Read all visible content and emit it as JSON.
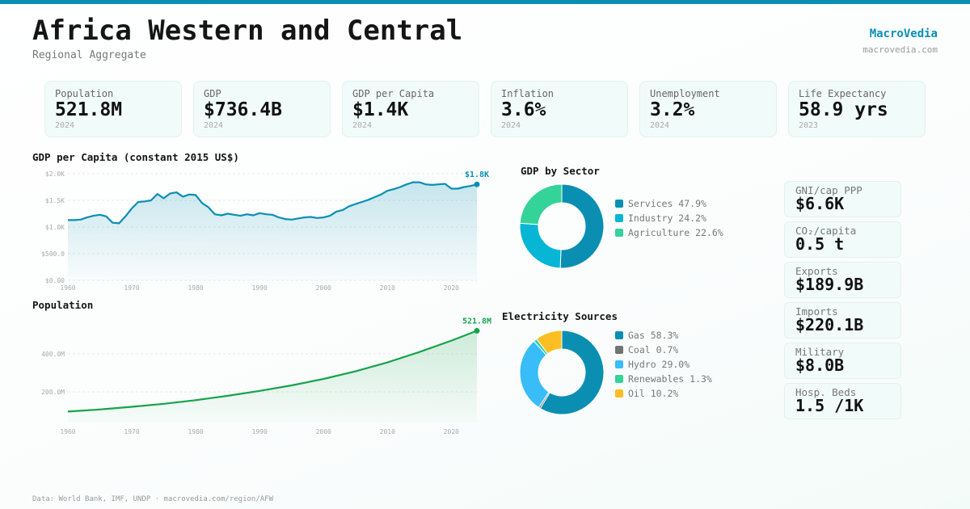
{
  "header": {
    "title": "Africa Western and Central",
    "subtitle": "Regional Aggregate",
    "brand": "MacroVedia",
    "brand_url": "macrovedia.com"
  },
  "colors": {
    "accent": "#0a8fb3",
    "population": "#16a34a"
  },
  "kpis": [
    {
      "label": "Population",
      "value": "521.8M",
      "year": "2024"
    },
    {
      "label": "GDP",
      "value": "$736.4B",
      "year": "2024"
    },
    {
      "label": "GDP per Capita",
      "value": "$1.4K",
      "year": "2024"
    },
    {
      "label": "Inflation",
      "value": "3.6%",
      "year": "2024"
    },
    {
      "label": "Unemployment",
      "value": "3.2%",
      "year": "2024"
    },
    {
      "label": "Life Expectancy",
      "value": "58.9 yrs",
      "year": "2023"
    }
  ],
  "side_stats": [
    {
      "label": "GNI/cap PPP",
      "value": "$6.6K"
    },
    {
      "label": "CO₂/capita",
      "value": "0.5 t"
    },
    {
      "label": "Exports",
      "value": "$189.9B"
    },
    {
      "label": "Imports",
      "value": "$220.1B"
    },
    {
      "label": "Military",
      "value": "$8.0B"
    },
    {
      "label": "Hosp. Beds",
      "value": "1.5 /1K"
    }
  ],
  "chart_data": [
    {
      "type": "area",
      "title": "GDP per Capita (constant 2015 US$)",
      "color": "#0a8fb3",
      "ylim": [
        0,
        2000
      ],
      "yticks": [
        {
          "v": 0,
          "label": "$0.00"
        },
        {
          "v": 500,
          "label": "$500.0"
        },
        {
          "v": 1000,
          "label": "$1.0K"
        },
        {
          "v": 1500,
          "label": "$1.5K"
        },
        {
          "v": 2000,
          "label": "$2.0K"
        }
      ],
      "xticks": [
        1960,
        1970,
        1980,
        1990,
        2000,
        2010,
        2020
      ],
      "grid": true,
      "end_label": "$1.8K",
      "x_start": 1960,
      "values": [
        1130,
        1130,
        1140,
        1180,
        1210,
        1230,
        1200,
        1080,
        1070,
        1200,
        1350,
        1470,
        1480,
        1500,
        1620,
        1540,
        1630,
        1650,
        1570,
        1610,
        1600,
        1450,
        1370,
        1240,
        1220,
        1250,
        1230,
        1210,
        1240,
        1220,
        1260,
        1240,
        1230,
        1180,
        1150,
        1140,
        1160,
        1180,
        1190,
        1170,
        1180,
        1210,
        1290,
        1320,
        1390,
        1430,
        1470,
        1510,
        1560,
        1610,
        1680,
        1710,
        1750,
        1800,
        1840,
        1840,
        1800,
        1790,
        1800,
        1810,
        1720,
        1720,
        1750,
        1770,
        1800
      ]
    },
    {
      "type": "area",
      "title": "Population",
      "color": "#16a34a",
      "ylim": [
        38,
        562
      ],
      "yticks": [
        {
          "v": 200,
          "label": "200.0M"
        },
        {
          "v": 400,
          "label": "400.0M"
        }
      ],
      "xticks": [
        1960,
        1970,
        1980,
        1990,
        2000,
        2010,
        2020
      ],
      "grid": true,
      "end_label": "521.8M",
      "x": [
        1960,
        1965,
        1970,
        1975,
        1980,
        1985,
        1990,
        1995,
        2000,
        2005,
        2010,
        2015,
        2020,
        2024
      ],
      "values": [
        96,
        107,
        121,
        137,
        156,
        179,
        205,
        234,
        268,
        308,
        355,
        410,
        470,
        521.8
      ]
    },
    {
      "type": "pie",
      "title": "GDP by Sector",
      "donut": true,
      "slices": [
        {
          "name": "Services",
          "value": 47.9,
          "label": "Services 47.9%",
          "color": "#0a8fb3"
        },
        {
          "name": "Industry",
          "value": 24.2,
          "label": "Industry 24.2%",
          "color": "#06b6d4"
        },
        {
          "name": "Agriculture",
          "value": 22.6,
          "label": "Agriculture 22.6%",
          "color": "#34d399"
        }
      ]
    },
    {
      "type": "pie",
      "title": "Electricity Sources",
      "donut": true,
      "slices": [
        {
          "name": "Gas",
          "value": 58.3,
          "label": "Gas 58.3%",
          "color": "#0a8fb3"
        },
        {
          "name": "Coal",
          "value": 0.7,
          "label": "Coal 0.7%",
          "color": "#737373"
        },
        {
          "name": "Hydro",
          "value": 29.0,
          "label": "Hydro 29.0%",
          "color": "#38bdf8"
        },
        {
          "name": "Renewables",
          "value": 1.3,
          "label": "Renewables 1.3%",
          "color": "#34d399"
        },
        {
          "name": "Oil",
          "value": 10.2,
          "label": "Oil 10.2%",
          "color": "#fbbf24"
        }
      ]
    }
  ],
  "footer": "Data: World Bank, IMF, UNDP · macrovedia.com/region/AFW"
}
